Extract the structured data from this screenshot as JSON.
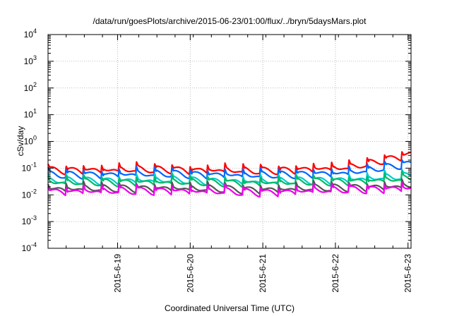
{
  "chart_data": {
    "type": "line",
    "title": "/data/run/goesPlots/archive/2015-06-23/01:00/flux/../bryn/5daysMars.plot",
    "xlabel": "Coordinated Universal Time (UTC)",
    "ylabel": "cSv/day",
    "yscale": "log",
    "ylim": [
      0.0001,
      10000
    ],
    "xlim": [
      "2015-06-18 01:00",
      "2015-06-23 01:00"
    ],
    "grid": true,
    "y_ticks": [
      {
        "base": "10",
        "exp": "-4"
      },
      {
        "base": "10",
        "exp": "-3"
      },
      {
        "base": "10",
        "exp": "-2"
      },
      {
        "base": "10",
        "exp": "-1"
      },
      {
        "base": "10",
        "exp": "0"
      },
      {
        "base": "10",
        "exp": "1"
      },
      {
        "base": "10",
        "exp": "2"
      },
      {
        "base": "10",
        "exp": "3"
      },
      {
        "base": "10",
        "exp": "4"
      }
    ],
    "x_ticks": [
      {
        "label": "2015-6-19",
        "x": "2015-06-19 00:00"
      },
      {
        "label": "2015-6-20",
        "x": "2015-06-20 00:00"
      },
      {
        "label": "2015-6-21",
        "x": "2015-06-21 00:00"
      },
      {
        "label": "2015-6-22",
        "x": "2015-06-22 00:00"
      },
      {
        "label": "2015-6-23",
        "x": "2015-06-23 00:00"
      }
    ],
    "sawtooth_period_hours": 5.85,
    "series": [
      {
        "color": "#ff0000",
        "baseline": [
          [
            0,
            0.075
          ],
          [
            40,
            0.08
          ],
          [
            70,
            0.07
          ],
          [
            100,
            0.095
          ],
          [
            120,
            0.3
          ]
        ]
      },
      {
        "color": "#0066ff",
        "baseline": [
          [
            0,
            0.05
          ],
          [
            40,
            0.055
          ],
          [
            70,
            0.048
          ],
          [
            100,
            0.06
          ],
          [
            120,
            0.13
          ]
        ]
      },
      {
        "color": "#00cccc",
        "baseline": [
          [
            0,
            0.03
          ],
          [
            40,
            0.032
          ],
          [
            70,
            0.028
          ],
          [
            100,
            0.034
          ],
          [
            120,
            0.045
          ]
        ]
      },
      {
        "color": "#00bb66",
        "baseline": [
          [
            0,
            0.026
          ],
          [
            40,
            0.027
          ],
          [
            70,
            0.025
          ],
          [
            100,
            0.029
          ],
          [
            120,
            0.036
          ]
        ]
      },
      {
        "color": "#555555",
        "baseline": [
          [
            0,
            0.015
          ],
          [
            40,
            0.016
          ],
          [
            70,
            0.014
          ],
          [
            100,
            0.017
          ],
          [
            120,
            0.019
          ]
        ]
      },
      {
        "color": "#ee00ee",
        "baseline": [
          [
            0,
            0.012
          ],
          [
            40,
            0.013
          ],
          [
            70,
            0.011
          ],
          [
            100,
            0.014
          ],
          [
            120,
            0.016
          ]
        ]
      }
    ]
  }
}
